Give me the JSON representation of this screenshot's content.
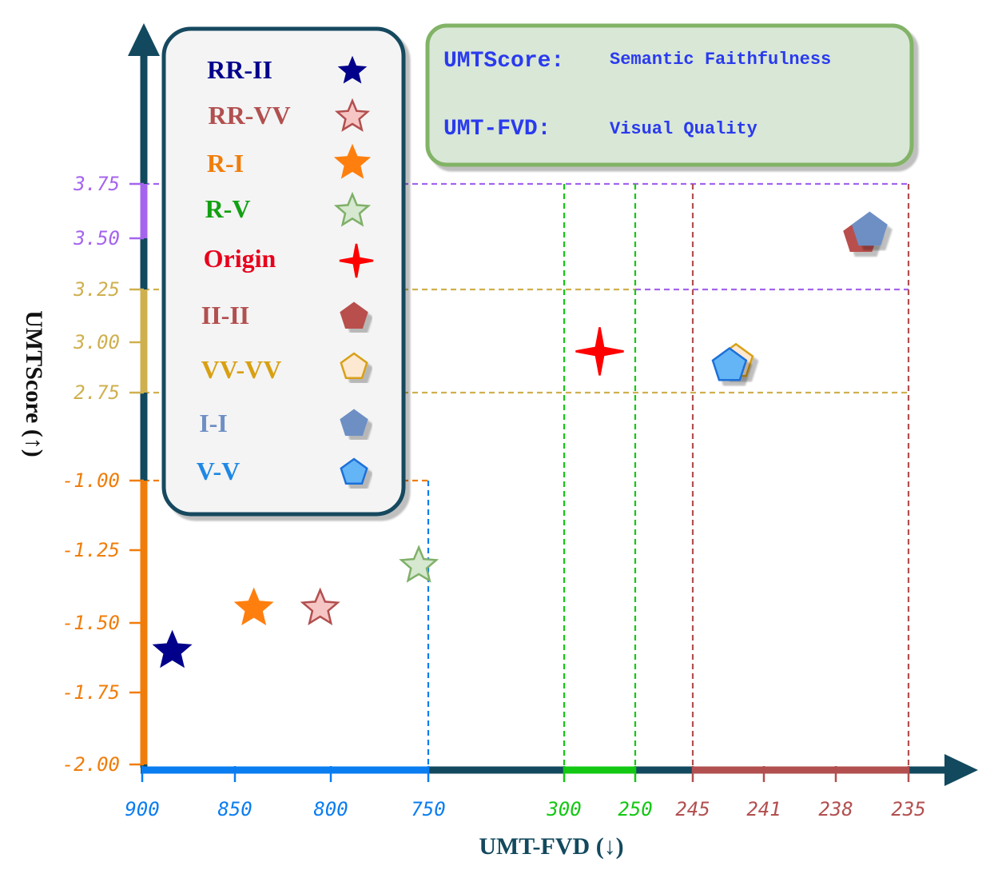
{
  "info_box": {
    "rows": [
      {
        "key": "UMTScore:",
        "value": "Semantic Faithfulness"
      },
      {
        "key": "UMT-FVD:",
        "value": "Visual Quality"
      }
    ]
  },
  "colors": {
    "axis": "#12495e",
    "blue": "#0a7df0",
    "green": "#12c812",
    "brown": "#b24f4f",
    "purple": "#a464ee",
    "gold": "#cfb04f",
    "orange": "#f07d0a"
  },
  "chart_data": {
    "type": "scatter",
    "xlabel": "UMT-FVD (↓)",
    "ylabel": "UMTScore (↑)",
    "x_axis_segments": [
      {
        "ticks": [
          "900",
          "850",
          "800",
          "750"
        ],
        "color": "#0a7df0"
      },
      {
        "ticks": [
          "300",
          "250"
        ],
        "color": "#12c812"
      },
      {
        "ticks": [
          "245",
          "241",
          "238",
          "235"
        ],
        "color": "#b24f4f"
      }
    ],
    "y_axis_segments": [
      {
        "ticks": [
          "-2.00",
          "-1.75",
          "-1.50",
          "-1.25",
          "-1.00"
        ],
        "color": "#f07d0a"
      },
      {
        "ticks": [
          "2.75",
          "3.00",
          "3.25"
        ],
        "color": "#cfb04f"
      },
      {
        "ticks": [
          "3.50",
          "3.75"
        ],
        "color": "#a464ee"
      }
    ],
    "legend": {
      "placement": "top-left",
      "entries": [
        {
          "label": "RR-II",
          "marker": "star",
          "color": "#00008b",
          "fill": "#00008b",
          "stroke": "#00008b"
        },
        {
          "label": "RR-VV",
          "marker": "star",
          "color": "#b24f4f",
          "fill": "#f6c6c4",
          "stroke": "#b24f4f"
        },
        {
          "label": "R-I",
          "marker": "star",
          "color": "#f07d0a",
          "fill": "#ff7f0e",
          "stroke": "#ff7f0e"
        },
        {
          "label": "R-V",
          "marker": "star",
          "color": "#12a012",
          "fill": "#d6e8cf",
          "stroke": "#7fb069"
        },
        {
          "label": "Origin",
          "marker": "sparkle",
          "color": "#e8001c",
          "fill": "#ff0000",
          "stroke": "#ff0000"
        },
        {
          "label": "II-II",
          "marker": "pentagon",
          "color": "#b24f4f",
          "fill": "#b84f4d",
          "stroke": "#b84f4d"
        },
        {
          "label": "VV-VV",
          "marker": "pentagon",
          "color": "#d8a012",
          "fill": "#fde8d2",
          "stroke": "#d8a012"
        },
        {
          "label": "I-I",
          "marker": "pentagon",
          "color": "#6d8fc4",
          "fill": "#6d8fc4",
          "stroke": "#6d8fc4"
        },
        {
          "label": "V-V",
          "marker": "pentagon",
          "color": "#1e88e5",
          "fill": "#64b5f6",
          "stroke": "#1e6fd8"
        }
      ]
    },
    "points": [
      {
        "series": "RR-II",
        "x": 885,
        "y": -1.6
      },
      {
        "series": "RR-VV",
        "x": 807,
        "y": -1.45
      },
      {
        "series": "R-I",
        "x": 842,
        "y": -1.45
      },
      {
        "series": "R-V",
        "x": 755,
        "y": -1.3
      },
      {
        "series": "Origin",
        "x": 275,
        "y": 2.95
      },
      {
        "series": "II-II",
        "x": 237.2,
        "y": 3.5
      },
      {
        "series": "I-I",
        "x": 236.8,
        "y": 3.53
      },
      {
        "series": "VV-VV",
        "x": 243.0,
        "y": 2.9
      },
      {
        "series": "V-V",
        "x": 243.3,
        "y": 2.88
      }
    ],
    "guides": [
      {
        "axis": "y",
        "value": "3.75",
        "color": "#a464ee"
      },
      {
        "axis": "y",
        "value": "3.25",
        "color": "#cfb04f"
      },
      {
        "axis": "y",
        "value": "3.25",
        "color": "#a464ee"
      },
      {
        "axis": "y",
        "value": "2.75",
        "color": "#cfb04f"
      },
      {
        "axis": "y",
        "value": "-1.00",
        "color": "#f07d0a"
      },
      {
        "axis": "x",
        "value": "750",
        "color": "#0a7df0"
      },
      {
        "axis": "x",
        "value": "300",
        "color": "#12c812"
      },
      {
        "axis": "x",
        "value": "250",
        "color": "#12c812"
      },
      {
        "axis": "x",
        "value": "245",
        "color": "#b24f4f"
      },
      {
        "axis": "x",
        "value": "235",
        "color": "#b24f4f"
      }
    ]
  }
}
